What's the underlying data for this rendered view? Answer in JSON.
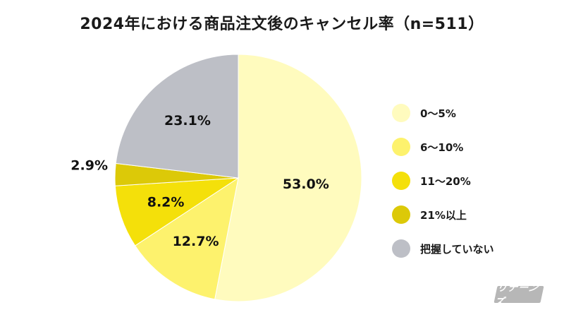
{
  "chart_data": {
    "type": "pie",
    "title": "2024年における商品注文後のキャンセル率（n=511）",
    "slices": [
      {
        "label": "0〜5%",
        "value": 53.0,
        "value_label": "53.0%",
        "color": "#fffbbe"
      },
      {
        "label": "6〜10%",
        "value": 12.7,
        "value_label": "12.7%",
        "color": "#fdf26d"
      },
      {
        "label": "11〜20%",
        "value": 8.2,
        "value_label": "8.2%",
        "color": "#f4e00a"
      },
      {
        "label": "21%以上",
        "value": 2.9,
        "value_label": "2.9%",
        "color": "#dcc908"
      },
      {
        "label": "把握していない",
        "value": 23.1,
        "value_label": "23.1%",
        "color": "#bdbfc6"
      }
    ],
    "legend_position": "right"
  },
  "brand": {
    "text": "リテーンズ"
  }
}
